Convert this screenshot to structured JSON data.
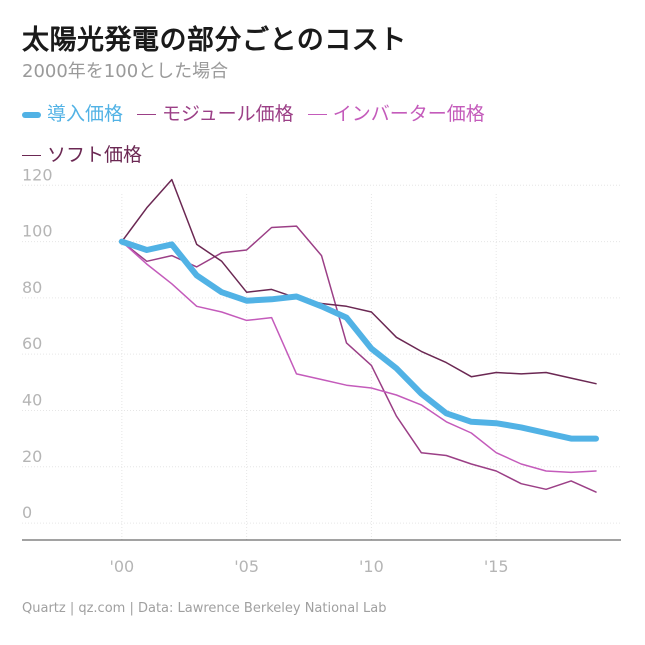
{
  "title": "太陽光発電の部分ごとのコスト",
  "subtitle": "2000年を100とした場合",
  "source": "Quartz | qz.com | Data: Lawrence Berkeley National Lab",
  "chart_data": {
    "type": "line",
    "title": "太陽光発電の部分ごとのコスト",
    "subtitle": "2000年を100とした場合",
    "xlabel": "",
    "ylabel": "",
    "xlim": [
      1996,
      2020
    ],
    "ylim": [
      -6,
      124
    ],
    "grid": true,
    "legend_position": "top-left",
    "y_ticks": [
      0,
      20,
      40,
      60,
      80,
      100,
      120
    ],
    "x_ticks": [
      2000,
      2005,
      2010,
      2015
    ],
    "x_tick_labels": [
      "'00",
      "'05",
      "'10",
      "'15"
    ],
    "x": [
      2000,
      2001,
      2002,
      2003,
      2004,
      2005,
      2006,
      2007,
      2008,
      2009,
      2010,
      2011,
      2012,
      2013,
      2014,
      2015,
      2016,
      2017,
      2018,
      2019
    ],
    "series": [
      {
        "name": "導入価格",
        "color": "#51b2e5",
        "width": 6,
        "values": [
          100,
          97,
          99,
          88,
          82,
          79,
          79.5,
          80.5,
          77,
          73,
          62,
          55,
          46,
          39,
          36,
          35.5,
          34,
          32,
          30,
          30
        ]
      },
      {
        "name": "モジュール価格",
        "color": "#9b3f86",
        "width": 1.5,
        "values": [
          100,
          93,
          95,
          91,
          96,
          97,
          105,
          105.5,
          95,
          64,
          56,
          38,
          25,
          24,
          21,
          18.5,
          14,
          12,
          15,
          11
        ]
      },
      {
        "name": "インバーター価格",
        "color": "#c45bbb",
        "width": 1.5,
        "values": [
          100,
          92,
          85,
          77,
          75,
          72,
          73,
          53,
          51,
          49,
          48,
          45.5,
          42,
          36,
          32,
          25,
          21,
          18.5,
          18,
          18.5
        ]
      },
      {
        "name": "ソフト価格",
        "color": "#6b2853",
        "width": 1.5,
        "values": [
          100,
          112,
          122,
          99,
          93,
          82,
          83,
          80,
          78,
          77,
          75,
          66,
          61,
          57,
          52,
          53.5,
          53,
          53.5,
          51.5,
          49.5
        ]
      }
    ]
  }
}
